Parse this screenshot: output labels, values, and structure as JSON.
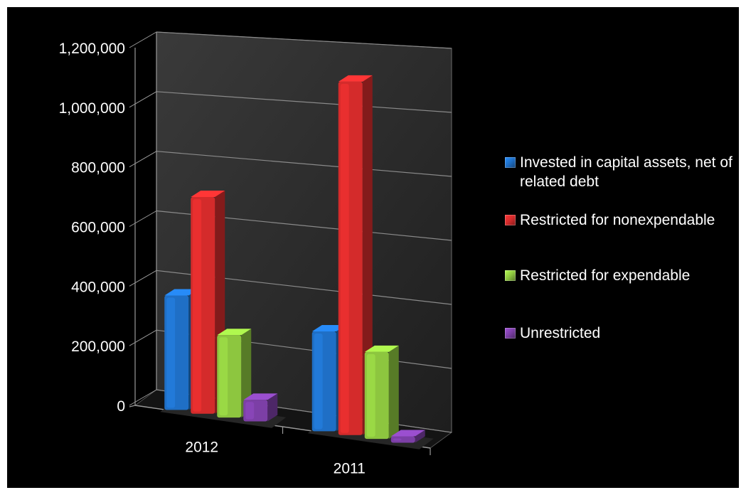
{
  "chart_data": {
    "type": "bar",
    "style": "3d-clustered-column",
    "categories": [
      "2012",
      "2011"
    ],
    "y_ticks": [
      "0",
      "200,000",
      "400,000",
      "600,000",
      "800,000",
      "1,000,000",
      "1,200,000"
    ],
    "ylim": [
      0,
      1200000
    ],
    "grid": true,
    "legend_position": "right",
    "series": [
      {
        "name": "Invested in capital assets, net of related debt",
        "values": [
          380000,
          320000
        ],
        "color": "#1f6fc6"
      },
      {
        "name": "Restricted for nonexpendable",
        "values": [
          715000,
          1125000
        ],
        "color": "#d42b2b"
      },
      {
        "name": "Restricted for expendable",
        "values": [
          270000,
          275000
        ],
        "color": "#8dc63f"
      },
      {
        "name": "Unrestricted",
        "values": [
          70000,
          20000
        ],
        "color": "#7c3fa6"
      }
    ],
    "background": "#000000"
  }
}
